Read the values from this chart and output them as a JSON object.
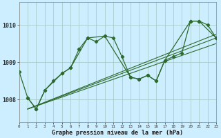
{
  "title": "Graphe pression niveau de la mer (hPa)",
  "bg_color": "#cceeff",
  "grid_color": "#aacccc",
  "line_color": "#2d6a2d",
  "x_min": 0,
  "x_max": 23,
  "y_min": 1007.4,
  "y_max": 1010.6,
  "yticks": [
    1008,
    1009,
    1010
  ],
  "xticks": [
    0,
    1,
    2,
    3,
    4,
    5,
    6,
    7,
    8,
    9,
    10,
    11,
    12,
    13,
    14,
    15,
    16,
    17,
    18,
    19,
    20,
    21,
    22,
    23
  ],
  "main_x": [
    0,
    1,
    2,
    3,
    4,
    5,
    6,
    7,
    8,
    9,
    10,
    11,
    12,
    13,
    14,
    15,
    16,
    17,
    18,
    19,
    20,
    21,
    22,
    23
  ],
  "main_y": [
    1008.75,
    1008.05,
    1007.75,
    1008.25,
    1008.5,
    1008.7,
    1008.85,
    1009.35,
    1009.65,
    1009.55,
    1009.7,
    1009.65,
    1009.15,
    1008.6,
    1008.55,
    1008.65,
    1008.5,
    1009.05,
    1009.15,
    1009.25,
    1010.1,
    1010.1,
    1010.0,
    1009.65
  ],
  "poly_x": [
    1,
    2,
    3,
    5,
    6,
    8,
    10,
    13,
    14,
    15,
    16,
    17,
    20,
    21,
    23
  ],
  "poly_y": [
    1008.05,
    1007.75,
    1008.25,
    1008.7,
    1008.85,
    1009.65,
    1009.7,
    1008.6,
    1008.55,
    1008.65,
    1008.5,
    1009.05,
    1010.1,
    1010.1,
    1009.65
  ],
  "trend1_x": [
    1,
    23
  ],
  "trend1_y": [
    1007.75,
    1009.5
  ],
  "trend2_x": [
    1,
    23
  ],
  "trend2_y": [
    1007.75,
    1009.65
  ],
  "trend3_x": [
    1,
    23
  ],
  "trend3_y": [
    1007.75,
    1009.75
  ]
}
